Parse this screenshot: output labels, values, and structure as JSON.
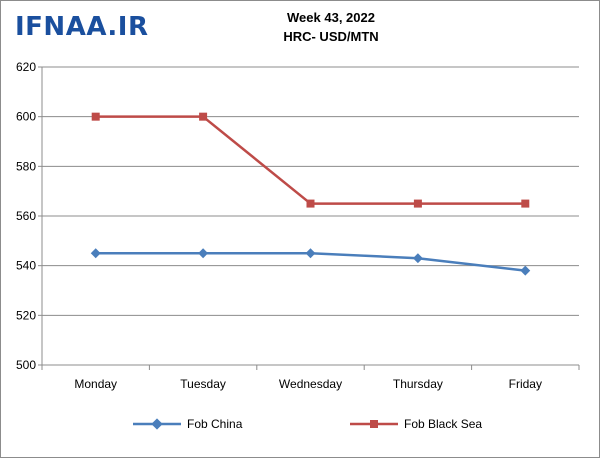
{
  "logo": "IFNAA.IR",
  "chart_data": {
    "type": "line",
    "title": "Week 43, 2022",
    "subtitle": "HRC- USD/MTN",
    "categories": [
      "Monday",
      "Tuesday",
      "Wednesday",
      "Thursday",
      "Friday"
    ],
    "series": [
      {
        "name": "Fob China",
        "values": [
          545,
          545,
          545,
          543,
          538
        ],
        "color": "#4a7ebb",
        "marker": "diamond"
      },
      {
        "name": "Fob Black Sea",
        "values": [
          600,
          600,
          565,
          565,
          565
        ],
        "color": "#be4b48",
        "marker": "square"
      }
    ],
    "ylim": [
      500,
      620
    ],
    "yticks": [
      "500",
      "520",
      "540",
      "560",
      "580",
      "600",
      "620"
    ],
    "grid": true,
    "legend_position": "bottom"
  }
}
